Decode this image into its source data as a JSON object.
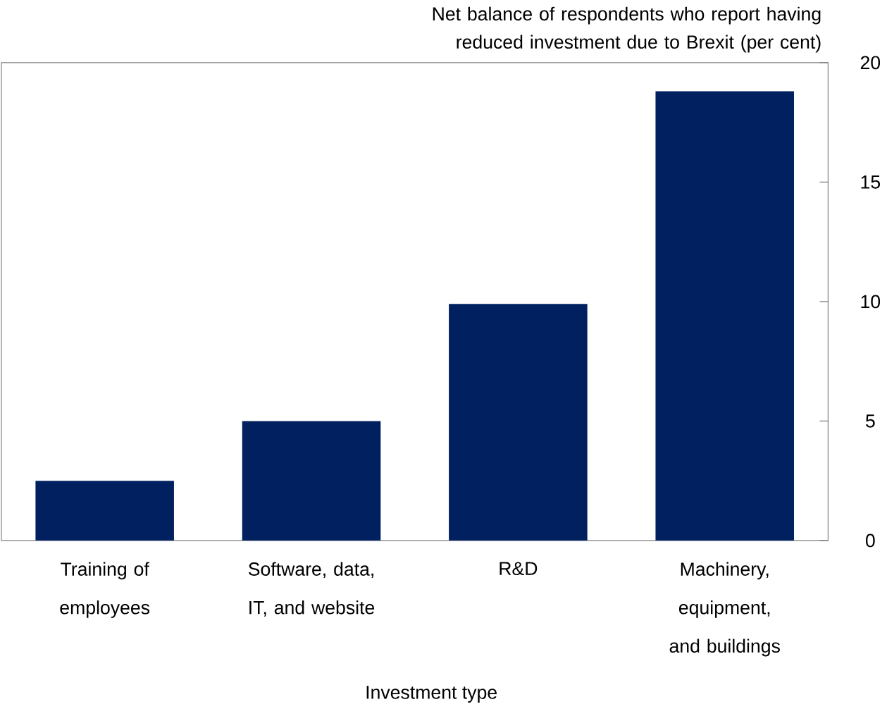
{
  "chart_data": {
    "type": "bar",
    "ylabel": "Net balance of respondents who report having reduced investment due to Brexit (per cent)",
    "xlabel": "Investment type",
    "categories": [
      "Training of employees",
      "Software, data, IT, and website",
      "R&D",
      "Machinery, equipment, and buildings"
    ],
    "values": [
      2.5,
      5.0,
      9.9,
      18.8
    ],
    "color": "#002060",
    "ylim": [
      0,
      20
    ],
    "yticks": [
      0,
      5,
      10,
      15,
      20
    ],
    "grid": false
  }
}
